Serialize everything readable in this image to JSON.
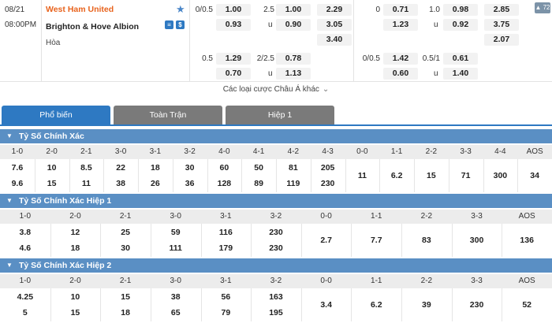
{
  "match": {
    "date": "08/21",
    "time": "08:00PM",
    "home": "West Ham United",
    "away": "Brighton & Hove Albion",
    "draw": "Hòa",
    "badge": "72",
    "more_label": "Các loại cược Châu Á khác",
    "ft": {
      "hcap_line_1": "0/0.5",
      "hcap_home_1": "1.00",
      "hcap_away_1": "0.93",
      "ou_line_1": "2.5",
      "ou_over_1": "1.00",
      "ou_u_1": "u",
      "ou_under_1": "0.90",
      "x12_home": "2.29",
      "x12_away": "3.05",
      "x12_draw": "3.40",
      "hcap_line_2": "0.5",
      "hcap_home_2": "1.29",
      "hcap_away_2": "0.70",
      "ou_line_2": "2/2.5",
      "ou_over_2": "0.78",
      "ou_u_2": "u",
      "ou_under_2": "1.13"
    },
    "h1": {
      "hcap_line_1": "0",
      "hcap_home_1": "0.71",
      "hcap_away_1": "1.23",
      "ou_line_1": "1.0",
      "ou_over_1": "0.98",
      "ou_u_1": "u",
      "ou_under_1": "0.92",
      "x12_home": "2.85",
      "x12_away": "3.75",
      "x12_draw": "2.07",
      "hcap_line_2": "0/0.5",
      "hcap_home_2": "1.42",
      "hcap_away_2": "0.60",
      "ou_line_2": "0.5/1",
      "ou_over_2": "0.61",
      "ou_u_2": "u",
      "ou_under_2": "1.40"
    }
  },
  "tabs": [
    "Phổ biến",
    "Toàn Trận",
    "Hiệp 1"
  ],
  "sections": [
    {
      "title": "Tỷ Số Chính Xác",
      "headers": [
        "1-0",
        "2-0",
        "2-1",
        "3-0",
        "3-1",
        "3-2",
        "4-0",
        "4-1",
        "4-2",
        "4-3",
        "0-0",
        "1-1",
        "2-2",
        "3-3",
        "4-4",
        "AOS"
      ],
      "top": [
        "7.6",
        "10",
        "8.5",
        "22",
        "18",
        "30",
        "60",
        "50",
        "81",
        "205",
        "11",
        "6.2",
        "15",
        "71",
        "300",
        "34"
      ],
      "bottom": [
        "9.6",
        "15",
        "11",
        "38",
        "26",
        "36",
        "128",
        "89",
        "119",
        "230"
      ]
    },
    {
      "title": "Tỷ Số Chính Xác Hiệp 1",
      "headers": [
        "1-0",
        "2-0",
        "2-1",
        "3-0",
        "3-1",
        "3-2",
        "0-0",
        "1-1",
        "2-2",
        "3-3",
        "AOS"
      ],
      "top": [
        "3.8",
        "12",
        "25",
        "59",
        "116",
        "230",
        "2.7",
        "7.7",
        "83",
        "300",
        "136"
      ],
      "bottom": [
        "4.6",
        "18",
        "30",
        "111",
        "179",
        "230"
      ]
    },
    {
      "title": "Tỷ Số Chính Xác Hiệp 2",
      "headers": [
        "1-0",
        "2-0",
        "2-1",
        "3-0",
        "3-1",
        "3-2",
        "0-0",
        "1-1",
        "2-2",
        "3-3",
        "AOS"
      ],
      "top": [
        "4.25",
        "10",
        "15",
        "38",
        "56",
        "163",
        "3.4",
        "6.2",
        "39",
        "230",
        "52"
      ],
      "bottom": [
        "5",
        "15",
        "18",
        "65",
        "79",
        "195"
      ]
    }
  ]
}
